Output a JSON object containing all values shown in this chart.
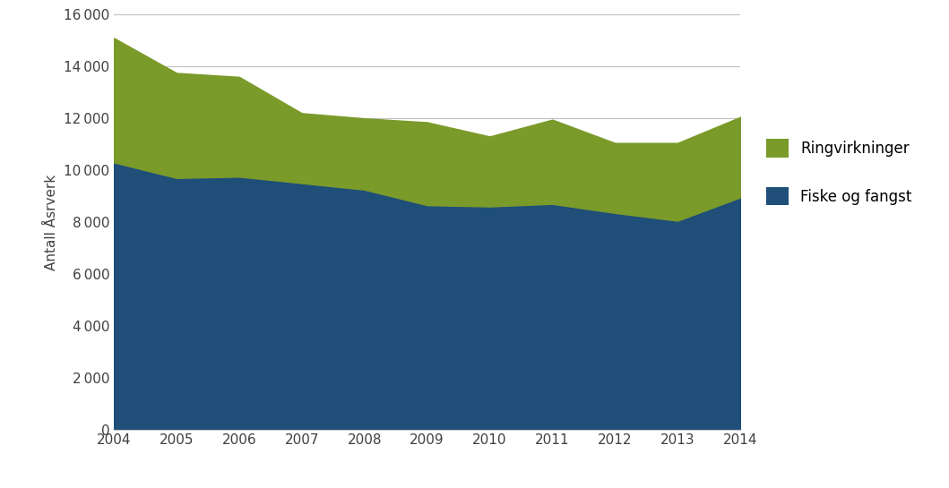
{
  "years": [
    2004,
    2005,
    2006,
    2007,
    2008,
    2009,
    2010,
    2011,
    2012,
    2013,
    2014
  ],
  "fiske_og_fangst": [
    10300,
    9700,
    9750,
    9500,
    9250,
    8650,
    8600,
    8700,
    8350,
    8050,
    8950
  ],
  "ringvirkninger": [
    4800,
    4050,
    3850,
    2700,
    2750,
    3200,
    2700,
    3250,
    2700,
    3000,
    3100
  ],
  "fiske_color": "#1F4E79",
  "ring_color": "#7A9A2A",
  "ylabel": "Antall Åsrverk",
  "ylim": [
    0,
    16000
  ],
  "yticks": [
    0,
    2000,
    4000,
    6000,
    8000,
    10000,
    12000,
    14000,
    16000
  ],
  "legend_ringvirkninger": "Ringvirkninger",
  "legend_fiske": "Fiske og fangst",
  "background_color": "#ffffff",
  "grid_color": "#c0c0c0"
}
